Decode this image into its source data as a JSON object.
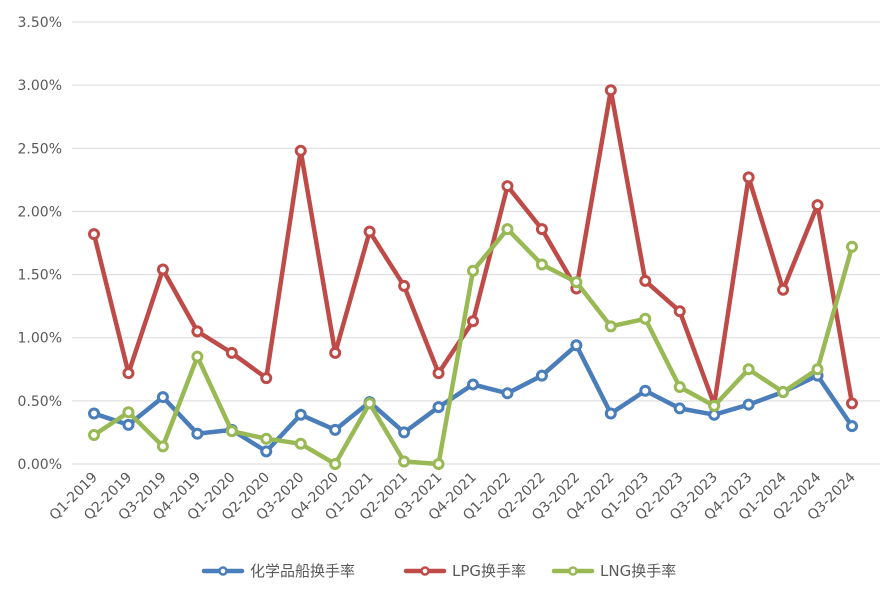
{
  "chart_data": {
    "type": "line",
    "title": "",
    "xlabel": "",
    "ylabel": "",
    "categories": [
      "Q1-2019",
      "Q2-2019",
      "Q3-2019",
      "Q4-2019",
      "Q1-2020",
      "Q2-2020",
      "Q3-2020",
      "Q4-2020",
      "Q1-2021",
      "Q2-2021",
      "Q3-2021",
      "Q4-2021",
      "Q1-2022",
      "Q2-2022",
      "Q3-2022",
      "Q4-2022",
      "Q1-2023",
      "Q2-2023",
      "Q3-2023",
      "Q4-2023",
      "Q1-2024",
      "Q2-2024",
      "Q3-2024"
    ],
    "ylim": [
      0,
      3.5
    ],
    "yticks": [
      "0.00%",
      "0.50%",
      "1.00%",
      "1.50%",
      "2.00%",
      "2.50%",
      "3.00%",
      "3.50%"
    ],
    "grid": true,
    "legend_position": "bottom",
    "series": [
      {
        "name": "化学品船换手率",
        "color": "#4A7EBB",
        "values": [
          0.4,
          0.31,
          0.53,
          0.24,
          0.27,
          0.1,
          0.39,
          0.27,
          0.49,
          0.25,
          0.45,
          0.63,
          0.56,
          0.7,
          0.94,
          0.4,
          0.58,
          0.44,
          0.39,
          0.47,
          0.57,
          0.7,
          0.3
        ]
      },
      {
        "name": "LPG换手率",
        "color": "#BE4B48",
        "values": [
          1.82,
          0.72,
          1.54,
          1.05,
          0.88,
          0.68,
          2.48,
          0.88,
          1.84,
          1.41,
          0.72,
          1.13,
          2.2,
          1.86,
          1.39,
          2.96,
          1.45,
          1.21,
          0.47,
          2.27,
          1.38,
          2.05,
          0.48
        ]
      },
      {
        "name": "LNG换手率",
        "color": "#98B954",
        "values": [
          0.23,
          0.41,
          0.14,
          0.85,
          0.26,
          0.2,
          0.16,
          0.0,
          0.48,
          0.02,
          0.0,
          1.53,
          1.86,
          1.58,
          1.44,
          1.09,
          1.15,
          0.61,
          0.46,
          0.75,
          0.57,
          0.75,
          1.72
        ]
      }
    ]
  }
}
